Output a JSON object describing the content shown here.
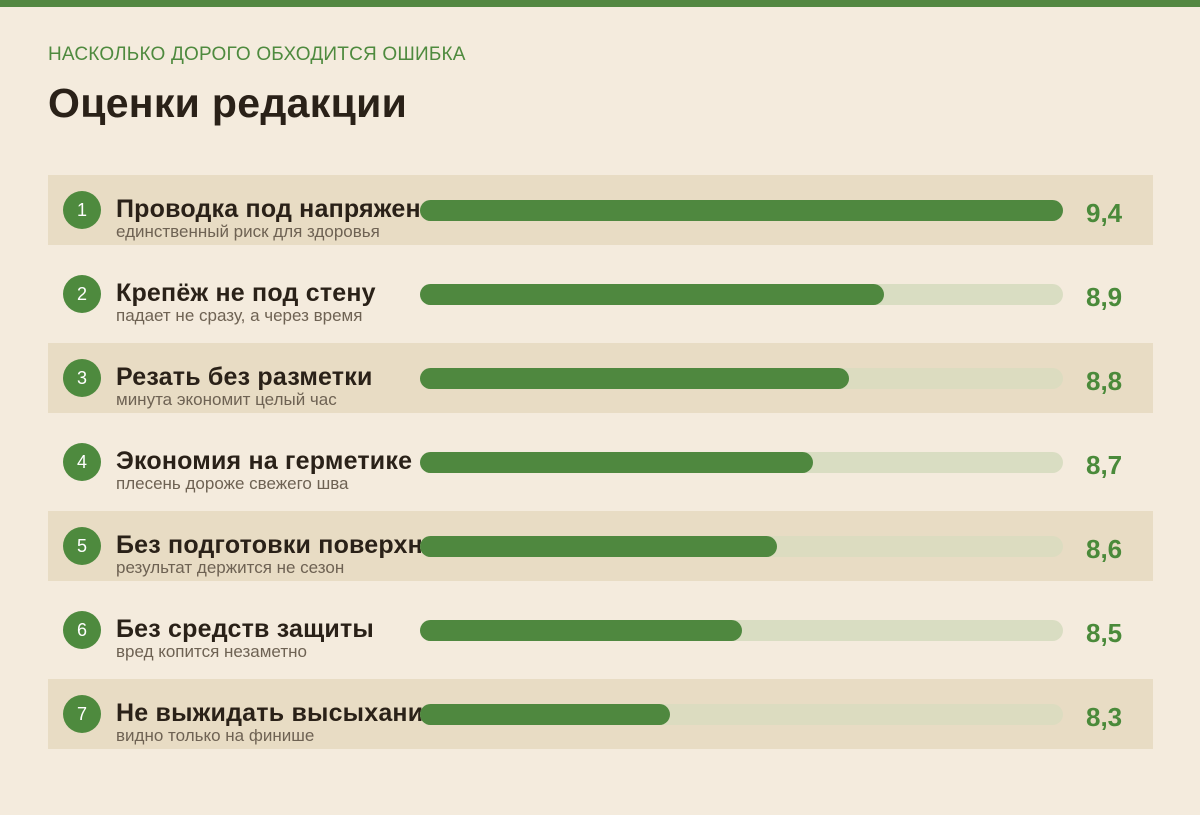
{
  "header": {
    "kicker": "НАСКОЛЬКО ДОРОГО ОБХОДИТСЯ ОШИБКА",
    "title": "Оценки редакции"
  },
  "colors": {
    "accent": "#4e8a3e",
    "background": "#f4ebdd",
    "row_shade": "#e8dcc4",
    "track": "#d9ddc2",
    "text": "#2a2118"
  },
  "chart_data": {
    "type": "bar",
    "orientation": "horizontal",
    "xlim": [
      0,
      9.4
    ],
    "categories": [
      "Проводка под напряжением",
      "Крепёж не под стену",
      "Резать без разметки",
      "Экономия на герметике",
      "Без подготовки поверхности",
      "Без средств защиты",
      "Не выжидать высыхание"
    ],
    "values": [
      9.4,
      8.9,
      8.8,
      8.7,
      8.6,
      8.5,
      8.3
    ],
    "items": [
      {
        "rank": "1",
        "label": "Проводка под напряжением",
        "sub": "единственный риск для здоровья",
        "score": "9,4",
        "value": 9.4
      },
      {
        "rank": "2",
        "label": "Крепёж не под стену",
        "sub": "падает не сразу, а через время",
        "score": "8,9",
        "value": 8.9
      },
      {
        "rank": "3",
        "label": "Резать без разметки",
        "sub": "минута экономит целый час",
        "score": "8,8",
        "value": 8.8
      },
      {
        "rank": "4",
        "label": "Экономия на герметике",
        "sub": "плесень дороже свежего шва",
        "score": "8,7",
        "value": 8.7
      },
      {
        "rank": "5",
        "label": "Без подготовки поверхности",
        "sub": "результат держится не сезон",
        "score": "8,6",
        "value": 8.6
      },
      {
        "rank": "6",
        "label": "Без средств защиты",
        "sub": "вред копится незаметно",
        "score": "8,5",
        "value": 8.5
      },
      {
        "rank": "7",
        "label": "Не выжидать высыхание",
        "sub": "видно только на финише",
        "score": "8,3",
        "value": 8.3
      }
    ]
  }
}
